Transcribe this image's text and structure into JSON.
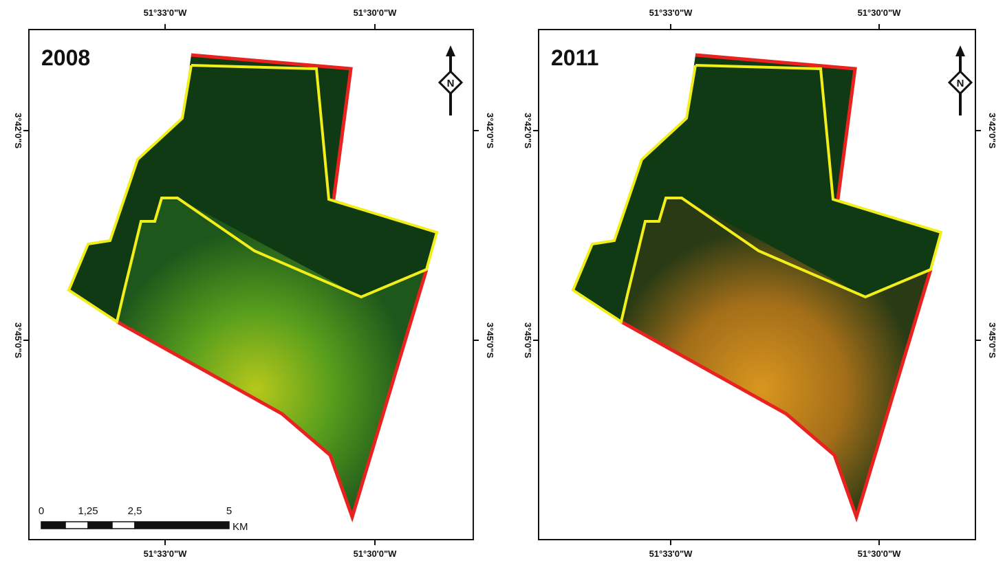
{
  "panels": [
    {
      "title": "2008",
      "lon_labels": [
        "51°33'0\"W",
        "51°30'0\"W"
      ],
      "lat_labels": [
        "3°42'0\"S",
        "3°45'0\"S"
      ],
      "north": "N"
    },
    {
      "title": "2011",
      "lon_labels": [
        "51°33'0\"W",
        "51°30'0\"W"
      ],
      "lat_labels": [
        "3°42'0\"S",
        "3°45'0\"S"
      ],
      "north": "N"
    }
  ],
  "scale_bar": {
    "labels": [
      "0",
      "1,25",
      "2,5",
      "5"
    ],
    "unit": "KM"
  }
}
